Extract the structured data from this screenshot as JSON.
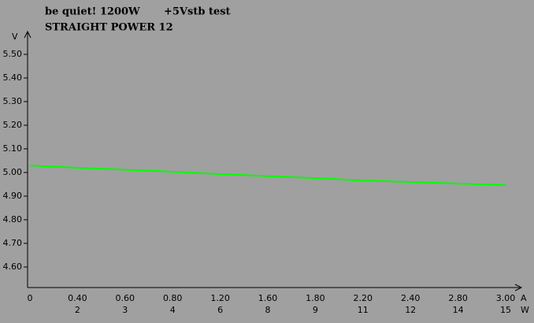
{
  "chart_data": {
    "type": "line",
    "title": "be quiet! 1200W",
    "subtitle": "+5Vstb test",
    "model": "STRAIGHT POWER 12",
    "ylabel": "V",
    "xlabel": "A",
    "x2label": "W",
    "categories": [
      "0",
      "0.40",
      "0.60",
      "0.80",
      "1.20",
      "1.60",
      "1.80",
      "2.20",
      "2.40",
      "2.80",
      "3.00"
    ],
    "categories2": [
      null,
      "2",
      "3",
      "4",
      "6",
      "8",
      "9",
      "11",
      "12",
      "14",
      "15"
    ],
    "series": [
      {
        "name": "+5Vstb",
        "color": "#00ff00",
        "values": [
          5.03,
          5.02,
          5.012,
          5.003,
          4.993,
          4.985,
          4.976,
          4.966,
          4.96,
          4.953,
          4.947
        ]
      }
    ],
    "ylim": [
      4.513,
      5.58
    ],
    "yticks": [
      {
        "value": 4.6,
        "label": "4.60"
      },
      {
        "value": 4.7,
        "label": "4.70"
      },
      {
        "value": 4.8,
        "label": "4.80"
      },
      {
        "value": 4.9,
        "label": "4.90"
      },
      {
        "value": 5.0,
        "label": "5.00"
      },
      {
        "value": 5.1,
        "label": "5.10"
      },
      {
        "value": 5.2,
        "label": "5.20"
      },
      {
        "value": 5.3,
        "label": "5.30"
      },
      {
        "value": 5.4,
        "label": "5.40"
      },
      {
        "value": 5.5,
        "label": "5.50"
      }
    ]
  }
}
